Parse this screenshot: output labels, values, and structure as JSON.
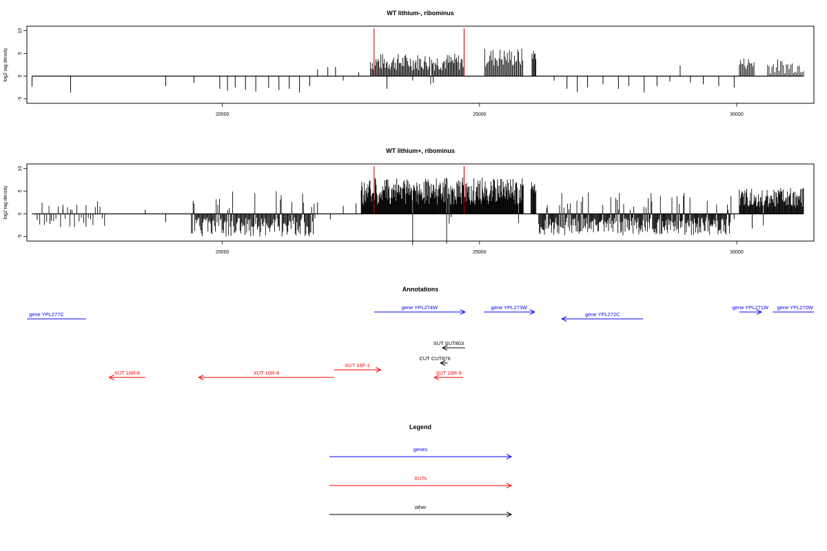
{
  "colors": {
    "genes": "#0000ff",
    "xuts": "#ff0000",
    "other": "#000000",
    "marker": "#cc0000"
  },
  "chart_data": [
    {
      "type": "bar",
      "title": "WT lithium-, ribominus",
      "ylabel": "log2 tag density",
      "xlim": [
        16200,
        31500
      ],
      "ylim": [
        -6,
        11
      ],
      "x_ticks": [
        "20000",
        "25000",
        "30000"
      ],
      "y_ticks": [
        "-5",
        "0",
        "5",
        "10"
      ],
      "markers": [
        22950,
        24700
      ],
      "marker_height": 10.5,
      "bars": [
        [
          16300,
          -2.3
        ],
        [
          17050,
          -3.6
        ],
        [
          18900,
          -2.2
        ],
        [
          19450,
          -1.5
        ],
        [
          19950,
          -2.8
        ],
        [
          20100,
          -3.2
        ],
        [
          20250,
          -2.5
        ],
        [
          20450,
          -3.0
        ],
        [
          20650,
          -3.4
        ],
        [
          20900,
          -2.6
        ],
        [
          21100,
          -3.1
        ],
        [
          21300,
          -2.8
        ],
        [
          21500,
          -3.6
        ],
        [
          21700,
          -2.2
        ],
        [
          21850,
          1.5
        ],
        [
          22050,
          2.0
        ],
        [
          22200,
          2.0
        ],
        [
          22350,
          -1.0
        ],
        [
          22650,
          0.9
        ],
        [
          23200,
          -2.8
        ],
        [
          23700,
          -1.0
        ],
        [
          24100,
          -1.5
        ],
        [
          26450,
          -1.0
        ],
        [
          26700,
          -2.8
        ],
        [
          26900,
          -3.5
        ],
        [
          27100,
          -2.5
        ],
        [
          27400,
          -1.8
        ],
        [
          27700,
          -2.8
        ],
        [
          27900,
          -2.2
        ],
        [
          28200,
          -3.6
        ],
        [
          28450,
          -2.2
        ],
        [
          28700,
          -1.2
        ],
        [
          28900,
          2.3
        ],
        [
          29100,
          -1.4
        ],
        [
          29350,
          -1.8
        ],
        [
          29650,
          -2.2
        ],
        [
          29950,
          -2.5
        ]
      ],
      "dense": [
        {
          "from": 22880,
          "to": 24700,
          "step": 18,
          "min": 1.2,
          "max": 5.0,
          "neg": 0.02
        },
        {
          "from": 25100,
          "to": 25850,
          "step": 20,
          "min": 2.0,
          "max": 6.2,
          "neg": 0.02
        },
        {
          "from": 26020,
          "to": 26100,
          "step": 15,
          "min": 3.5,
          "max": 6.0,
          "neg": 0
        },
        {
          "from": 30050,
          "to": 30350,
          "step": 22,
          "min": 1.5,
          "max": 4.2,
          "neg": 0
        },
        {
          "from": 30600,
          "to": 31300,
          "step": 28,
          "min": 0.6,
          "max": 3.8,
          "neg": 0
        }
      ]
    },
    {
      "type": "bar",
      "title": "WT lithium+, ribominus",
      "ylabel": "log2 tag density",
      "xlim": [
        16200,
        31500
      ],
      "ylim": [
        -6,
        11
      ],
      "x_ticks": [
        "20000",
        "25000",
        "30000"
      ],
      "y_ticks": [
        "-5",
        "0",
        "5",
        "10"
      ],
      "markers": [
        22950,
        24700
      ],
      "marker_height": 10.5,
      "bars": [
        [
          16400,
          -1.3
        ],
        [
          16650,
          -2.2
        ],
        [
          16900,
          2.0
        ],
        [
          17050,
          1.0
        ],
        [
          17350,
          -2.8
        ],
        [
          18500,
          0.9
        ],
        [
          18900,
          -1.8
        ],
        [
          21850,
          2.5
        ],
        [
          22100,
          -1.2
        ],
        [
          22350,
          1.7
        ],
        [
          22600,
          2.3
        ],
        [
          24450,
          -0.7
        ],
        [
          29950,
          -1.2
        ],
        [
          30300,
          -3.2
        ]
      ],
      "dense": [
        {
          "from": 16450,
          "to": 17750,
          "step": 45,
          "min": 0.6,
          "max": 3.0,
          "neg": 0.7
        },
        {
          "from": 19400,
          "to": 21800,
          "step": 16,
          "min": 0.8,
          "max": 5.0,
          "neg": 0.9
        },
        {
          "from": 22700,
          "to": 25850,
          "step": 10,
          "min": 2.0,
          "max": 8.0,
          "neg": 0.01
        },
        {
          "from": 26000,
          "to": 26100,
          "step": 12,
          "min": 4.0,
          "max": 7.0,
          "neg": 0
        },
        {
          "from": 26150,
          "to": 29900,
          "step": 14,
          "min": 0.8,
          "max": 4.8,
          "neg": 0.85
        },
        {
          "from": 30050,
          "to": 31300,
          "step": 12,
          "min": 1.5,
          "max": 5.8,
          "neg": 0.02
        }
      ]
    }
  ],
  "annotations": {
    "title": "Annotations",
    "items": [
      {
        "label": "gene YPL277C",
        "kind": "genes",
        "from": 16200,
        "to": 17350,
        "dir": "none",
        "row": 1
      },
      {
        "label": "gene YPL274W",
        "kind": "genes",
        "from": 22950,
        "to": 24720,
        "dir": "right",
        "row": 0
      },
      {
        "label": "gene YPL273W",
        "kind": "genes",
        "from": 25080,
        "to": 26070,
        "dir": "right",
        "row": 0
      },
      {
        "label": "gene YPL272C",
        "kind": "genes",
        "from": 26600,
        "to": 28180,
        "dir": "left",
        "row": 1
      },
      {
        "label": "gene YPL271W",
        "kind": "genes",
        "from": 30050,
        "to": 30480,
        "dir": "right",
        "row": 0
      },
      {
        "label": "gene YPL270W",
        "kind": "genes",
        "from": 30700,
        "to": 31500,
        "dir": "none",
        "row": 0
      },
      {
        "label": "SUT SUT803",
        "kind": "other",
        "from": 24280,
        "to": 24720,
        "dir": "left",
        "row": 2
      },
      {
        "label": "CUT CUT876",
        "kind": "other",
        "from": 24240,
        "to": 24380,
        "dir": "left",
        "row": 3
      },
      {
        "label": "XUT 16R-6",
        "kind": "xuts",
        "from": 17800,
        "to": 18500,
        "dir": "left",
        "row": 4
      },
      {
        "label": "XUT 16R-8",
        "kind": "xuts",
        "from": 19540,
        "to": 22170,
        "dir": "left",
        "row": 4
      },
      {
        "label": "XUT 16F-1",
        "kind": "xuts",
        "from": 22170,
        "to": 23080,
        "dir": "right",
        "row": 3.5
      },
      {
        "label": "XUT 16R-9",
        "kind": "xuts",
        "from": 24120,
        "to": 24680,
        "dir": "left",
        "row": 4
      }
    ]
  },
  "legend": {
    "title": "Legend",
    "items": [
      {
        "label": "genes",
        "kind": "genes"
      },
      {
        "label": "XUTs",
        "kind": "xuts"
      },
      {
        "label": "other",
        "kind": "other"
      }
    ]
  }
}
